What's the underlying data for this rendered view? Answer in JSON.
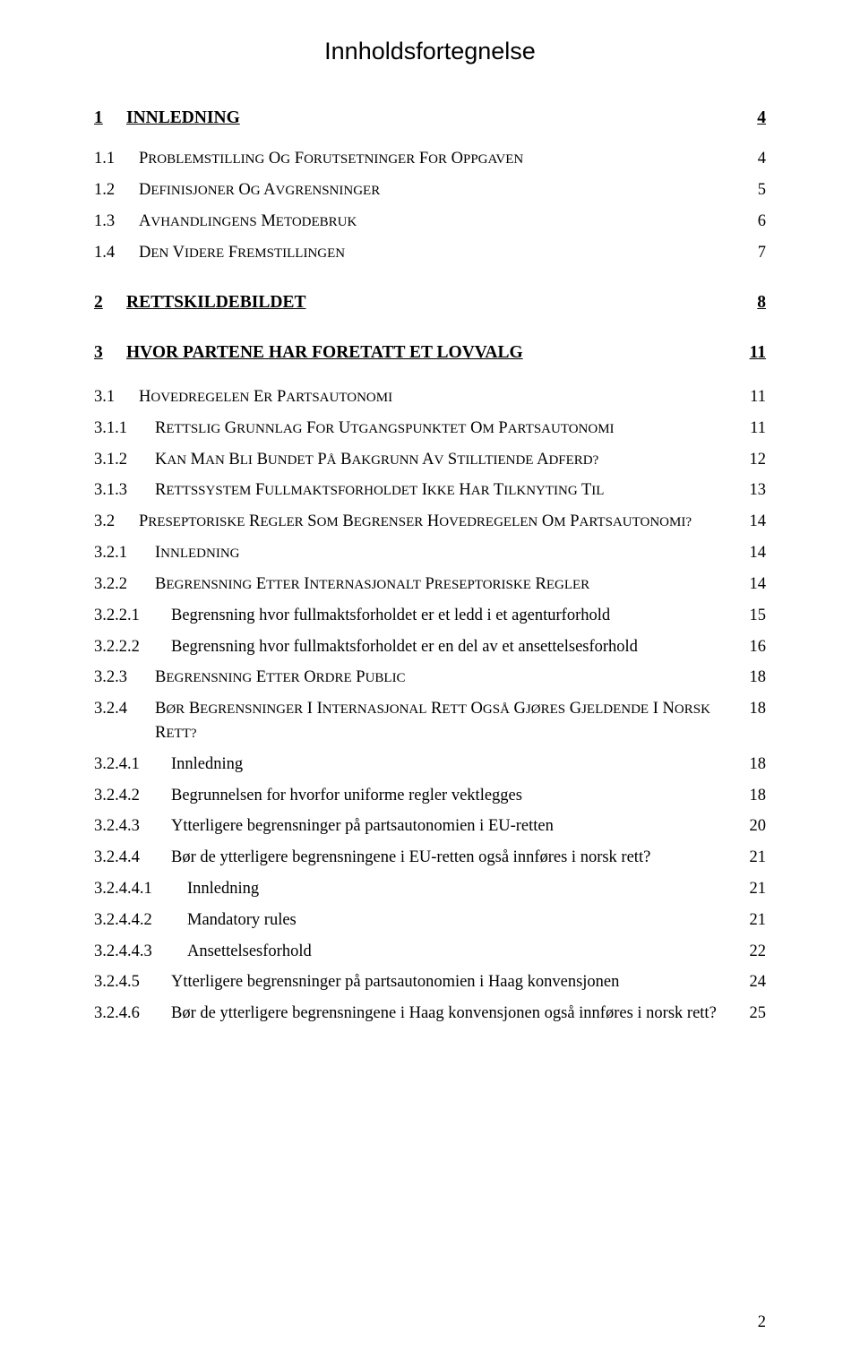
{
  "title": "Innholdsfortegnelse",
  "page_number": "2",
  "entries": [
    {
      "level": 1,
      "num": "1",
      "text": "INNLEDNING",
      "page": "4",
      "first": true
    },
    {
      "level": 2,
      "num": "1.1",
      "text": "PROBLEMSTILLING OG FORUTSETNINGER FOR OPPGAVEN",
      "page": "4",
      "smallcaps": true
    },
    {
      "level": 2,
      "num": "1.2",
      "text": "DEFINISJONER OG AVGRENSNINGER",
      "page": "5",
      "smallcaps": true
    },
    {
      "level": 2,
      "num": "1.3",
      "text": "AVHANDLINGENS METODEBRUK",
      "page": "6",
      "smallcaps": true
    },
    {
      "level": 2,
      "num": "1.4",
      "text": "DEN VIDERE FREMSTILLINGEN",
      "page": "7",
      "smallcaps": true
    },
    {
      "level": 1,
      "num": "2",
      "text": "RETTSKILDEBILDET",
      "page": "8"
    },
    {
      "level": 1,
      "num": "3",
      "text": "HVOR PARTENE HAR FORETATT ET LOVVALG",
      "page": "11"
    },
    {
      "level": 2,
      "num": "3.1",
      "text": "HOVEDREGELEN ER PARTSAUTONOMI",
      "page": "11",
      "smallcaps": true,
      "extra_gap": true
    },
    {
      "level": 3,
      "num": "3.1.1",
      "text": "RETTSLIG GRUNNLAG FOR UTGANGSPUNKTET OM PARTSAUTONOMI",
      "page": "11",
      "smallcaps": true
    },
    {
      "level": 3,
      "num": "3.1.2",
      "text": "KAN MAN BLI BUNDET PÅ BAKGRUNN AV STILLTIENDE ADFERD?",
      "page": "12",
      "smallcaps": true
    },
    {
      "level": 3,
      "num": "3.1.3",
      "text": "RETTSSYSTEM FULLMAKTSFORHOLDET IKKE HAR TILKNYTING TIL",
      "page": "13",
      "smallcaps": true
    },
    {
      "level": 2,
      "num": "3.2",
      "text": "PRESEPTORISKE REGLER SOM BEGRENSER HOVEDREGELEN OM PARTSAUTONOMI?",
      "page": "14",
      "smallcaps": true
    },
    {
      "level": 3,
      "num": "3.2.1",
      "text": "INNLEDNING",
      "page": "14",
      "smallcaps": true
    },
    {
      "level": 3,
      "num": "3.2.2",
      "text": "BEGRENSNING ETTER INTERNASJONALT PRESEPTORISKE REGLER",
      "page": "14",
      "smallcaps": true
    },
    {
      "level": 4,
      "num": "3.2.2.1",
      "text": "Begrensning hvor fullmaktsforholdet er et ledd i et agenturforhold",
      "page": "15"
    },
    {
      "level": 4,
      "num": "3.2.2.2",
      "text": "Begrensning hvor fullmaktsforholdet er en del av et ansettelsesforhold",
      "page": "16"
    },
    {
      "level": 3,
      "num": "3.2.3",
      "text": "BEGRENSNING ETTER ORDRE PUBLIC",
      "page": "18",
      "smallcaps": true
    },
    {
      "level": 3,
      "num": "3.2.4",
      "text": "BØR BEGRENSNINGER I INTERNASJONAL RETT OGSÅ GJØRES GJELDENDE I NORSK RETT?",
      "page": "18",
      "smallcaps": true
    },
    {
      "level": 4,
      "num": "3.2.4.1",
      "text": "Innledning",
      "page": "18"
    },
    {
      "level": 4,
      "num": "3.2.4.2",
      "text": "Begrunnelsen for hvorfor uniforme regler vektlegges",
      "page": "18"
    },
    {
      "level": 4,
      "num": "3.2.4.3",
      "text": "Ytterligere begrensninger på partsautonomien i EU-retten",
      "page": "20"
    },
    {
      "level": 4,
      "num": "3.2.4.4",
      "text": "Bør de ytterligere begrensningene i EU-retten også innføres i norsk rett?",
      "page": "21"
    },
    {
      "level": 5,
      "num": "3.2.4.4.1",
      "text": "Innledning",
      "page": "21"
    },
    {
      "level": 5,
      "num": "3.2.4.4.2",
      "text": "Mandatory rules",
      "page": "21"
    },
    {
      "level": 5,
      "num": "3.2.4.4.3",
      "text": "Ansettelsesforhold",
      "page": "22"
    },
    {
      "level": 4,
      "num": "3.2.4.5",
      "text": "Ytterligere begrensninger på partsautonomien i Haag konvensjonen",
      "page": "24"
    },
    {
      "level": 4,
      "num": "3.2.4.6",
      "text": "Bør de ytterligere begrensningene i Haag konvensjonen også innføres i norsk rett?",
      "page": "25"
    }
  ]
}
